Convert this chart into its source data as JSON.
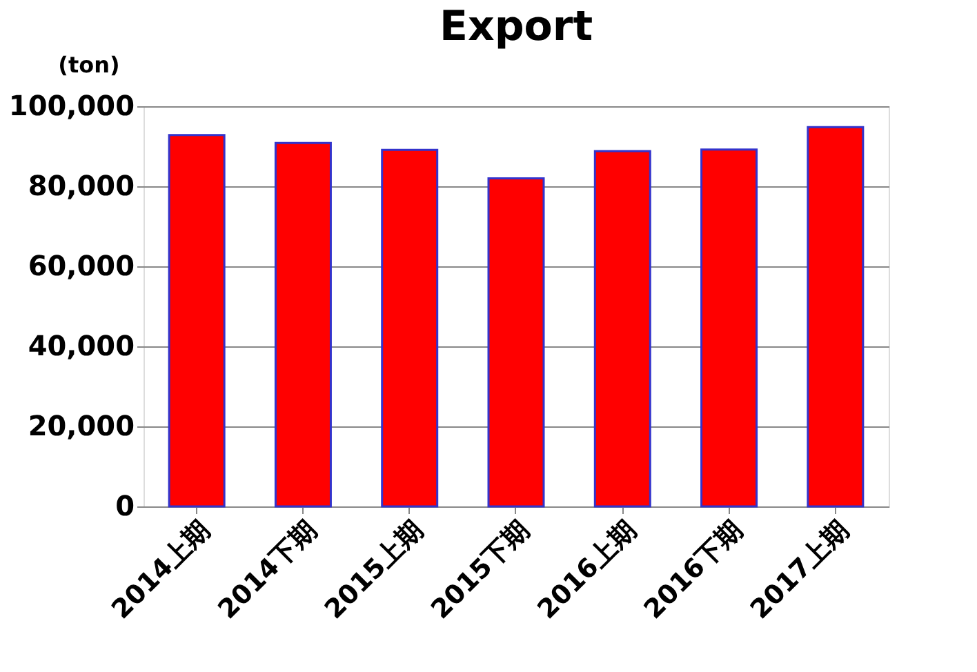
{
  "chart_data": {
    "type": "bar",
    "title": "Export",
    "ylabel": "(ton)",
    "categories": [
      "2014上期",
      "2014下期",
      "2015上期",
      "2015下期",
      "2016上期",
      "2016下期",
      "2017上期"
    ],
    "values": [
      92800,
      90800,
      89100,
      82000,
      88800,
      89200,
      94800
    ],
    "color": "#ff0000",
    "ylim": [
      0,
      100000
    ],
    "yticks": [
      0,
      {
        "value": 20000,
        "label": "20,000"
      },
      {
        "value": 40000,
        "label": "40,000"
      },
      {
        "value": 60000,
        "label": "60,000"
      },
      {
        "value": 80000,
        "label": "80,000"
      },
      {
        "value": 100000,
        "label": "100,000"
      }
    ],
    "grid": "y"
  }
}
